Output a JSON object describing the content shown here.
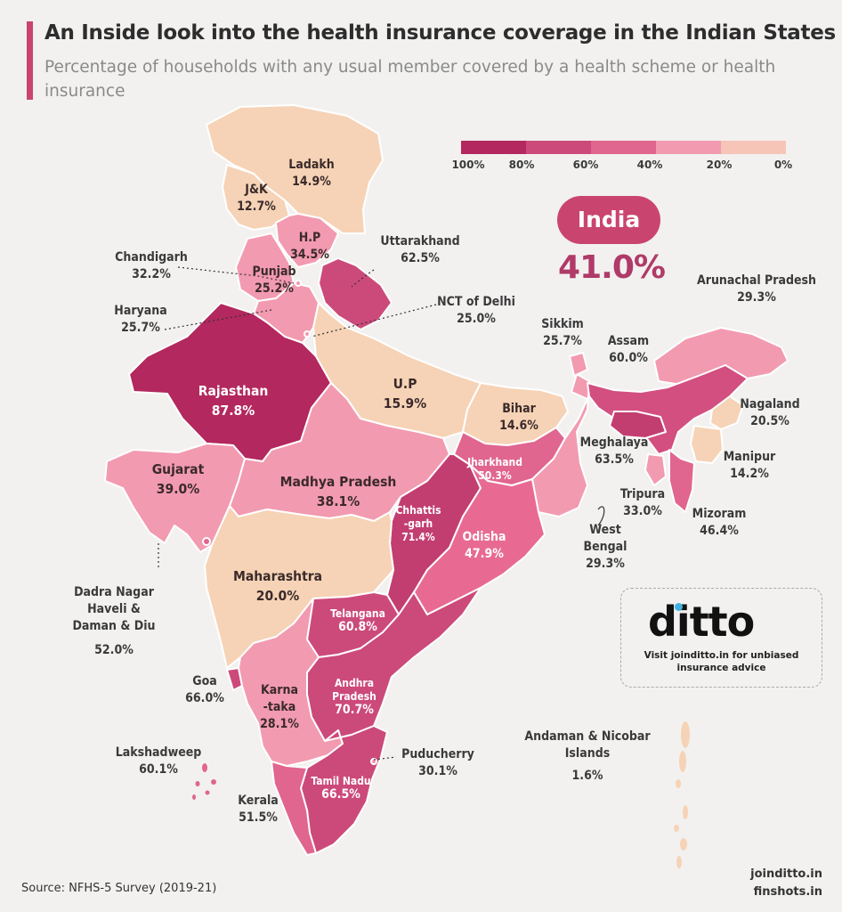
{
  "header": {
    "title": "An Inside look into the health insurance coverage in the Indian States",
    "subtitle": "Percentage of households with any usual member covered by a health scheme or health insurance"
  },
  "legend": {
    "ticks": [
      "100%",
      "80%",
      "60%",
      "40%",
      "20%",
      "0%"
    ],
    "colors": [
      "#b3285e",
      "#cc4a7a",
      "#e0658f",
      "#f29ab0",
      "#f6c5b8"
    ]
  },
  "national": {
    "label": "India",
    "value": "41.0%"
  },
  "regions": {
    "ladakh": {
      "name": "Ladakh",
      "value": "14.9%"
    },
    "jk": {
      "name": "J&K",
      "value": "12.7%"
    },
    "hp": {
      "name": "H.P",
      "value": "34.5%"
    },
    "uttarakhand": {
      "name": "Uttarakhand",
      "value": "62.5%"
    },
    "chandigarh": {
      "name": "Chandigarh",
      "value": "32.2%"
    },
    "punjab": {
      "name": "Punjab",
      "value": "25.2%"
    },
    "haryana": {
      "name": "Haryana",
      "value": "25.7%"
    },
    "delhi": {
      "name": "NCT of Delhi",
      "value": "25.0%"
    },
    "rajasthan": {
      "name": "Rajasthan",
      "value": "87.8%"
    },
    "up": {
      "name": "U.P",
      "value": "15.9%"
    },
    "bihar": {
      "name": "Bihar",
      "value": "14.6%"
    },
    "sikkim": {
      "name": "Sikkim",
      "value": "25.7%"
    },
    "arunachal": {
      "name": "Arunachal Pradesh",
      "value": "29.3%"
    },
    "assam": {
      "name": "Assam",
      "value": "60.0%"
    },
    "nagaland": {
      "name": "Nagaland",
      "value": "20.5%"
    },
    "meghalaya": {
      "name": "Meghalaya",
      "value": "63.5%"
    },
    "manipur": {
      "name": "Manipur",
      "value": "14.2%"
    },
    "tripura": {
      "name": "Tripura",
      "value": "33.0%"
    },
    "mizoram": {
      "name": "Mizoram",
      "value": "46.4%"
    },
    "westbengal": {
      "name1": "West",
      "name2": "Bengal",
      "value": "29.3%"
    },
    "jharkhand": {
      "name": "Jharkhand",
      "value": "50.3%"
    },
    "gujarat": {
      "name": "Gujarat",
      "value": "39.0%"
    },
    "mp": {
      "name": "Madhya Pradesh",
      "value": "38.1%"
    },
    "chhattisgarh": {
      "name1": "Chhattis",
      "name2": "-garh",
      "value": "71.4%"
    },
    "odisha": {
      "name": "Odisha",
      "value": "47.9%"
    },
    "dnh": {
      "name1": "Dadra Nagar",
      "name2": "Haveli &",
      "name3": "Daman & Diu",
      "value": "52.0%"
    },
    "maharashtra": {
      "name": "Maharashtra",
      "value": "20.0%"
    },
    "telangana": {
      "name": "Telangana",
      "value": "60.8%"
    },
    "goa": {
      "name": "Goa",
      "value": "66.0%"
    },
    "karnataka": {
      "name1": "Karna",
      "name2": "-taka",
      "value": "28.1%"
    },
    "andhra": {
      "name1": "Andhra",
      "name2": "Pradesh",
      "value": "70.7%"
    },
    "puducherry": {
      "name": "Puducherry",
      "value": "30.1%"
    },
    "lakshadweep": {
      "name": "Lakshadweep",
      "value": "60.1%"
    },
    "tamilnadu": {
      "name": "Tamil Nadu",
      "value": "66.5%"
    },
    "kerala": {
      "name": "Kerala",
      "value": "51.5%"
    },
    "andaman": {
      "name1": "Andaman & Nicobar",
      "name2": "Islands",
      "value": "1.6%"
    }
  },
  "ad": {
    "logo": "ditto",
    "tagline1": "Visit joinditto.in for unbiased",
    "tagline2": "insurance advice"
  },
  "footer": {
    "source": "Source: NFHS-5 Survey (2019-21)",
    "site1": "joinditto.in",
    "site2": "finshots.in"
  }
}
